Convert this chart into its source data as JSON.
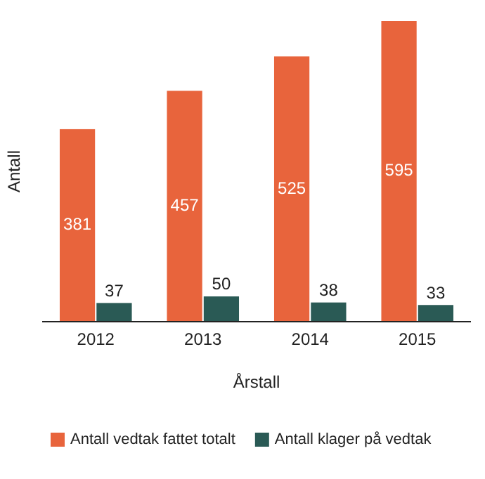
{
  "chart_data": {
    "type": "bar",
    "xlabel": "Årstall",
    "ylabel": "Antall",
    "categories": [
      "2012",
      "2013",
      "2014",
      "2015"
    ],
    "series": [
      {
        "name": "Antall vedtak fattet totalt",
        "color": "#e8643c",
        "values": [
          381,
          457,
          525,
          595
        ]
      },
      {
        "name": "Antall klager på vedtak",
        "color": "#2a5a55",
        "values": [
          37,
          50,
          38,
          33
        ]
      }
    ],
    "data_labels": true,
    "legend": "bottom",
    "grid": false
  }
}
